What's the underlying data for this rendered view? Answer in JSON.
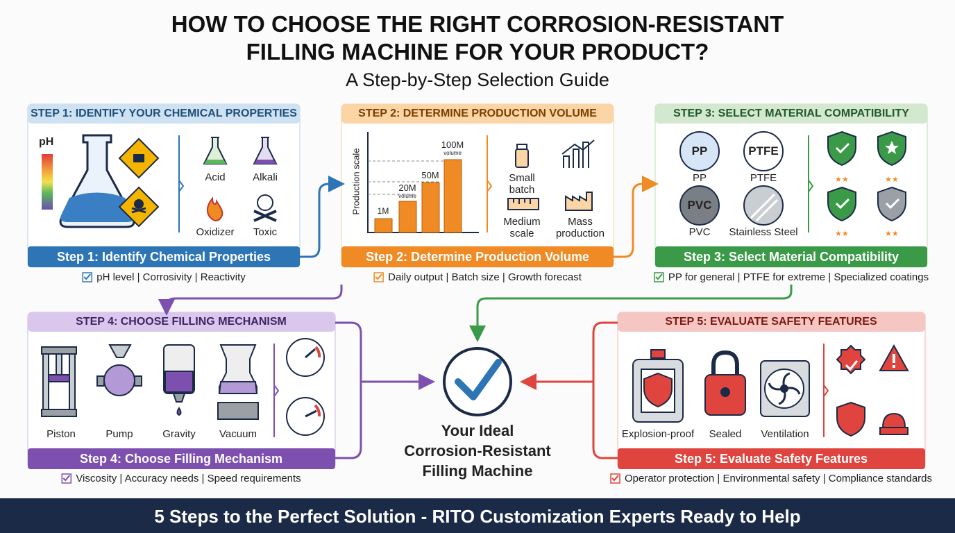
{
  "header": {
    "title_line1": "HOW TO CHOOSE THE RIGHT CORROSION-RESISTANT",
    "title_line2": "FILLING MACHINE FOR YOUR PRODUCT?",
    "subtitle": "A Step-by-Step Selection Guide"
  },
  "steps": [
    {
      "header": "STEP 1: IDENTIFY YOUR CHEMICAL PROPERTIES",
      "labels": [
        "pH",
        "Acid",
        "Alkali",
        "Oxidizer",
        "Toxic"
      ],
      "banner": "Step 1: Identify Chemical Properties",
      "criteria": "pH level | Corrosivity | Reactivity"
    },
    {
      "header": "STEP 2: DETERMINE PRODUCTION VOLUME",
      "chart": {
        "axis_label": "Production scale",
        "bars": [
          "1M",
          "20M",
          "50M",
          "100M"
        ],
        "sublabel": "volume"
      },
      "labels": [
        "Small batch",
        "Medium scale",
        "Mass production"
      ],
      "banner": "Step 2: Determine Production Volume",
      "criteria": "Daily output | Batch size | Growth forecast"
    },
    {
      "header": "STEP 3: SELECT MATERIAL COMPATIBILITY",
      "labels": [
        "PP",
        "PTFE",
        "PVC",
        "Stainless Steel"
      ],
      "banner": "Step 3: Select Material Compatibility",
      "criteria": "PP for general | PTFE for extreme | Specialized coatings"
    },
    {
      "header": "STEP 4: CHOOSE FILLING MECHANISM",
      "labels": [
        "Piston",
        "Pump",
        "Gravity",
        "Vacuum"
      ],
      "banner": "Step 4: Choose Filling Mechanism",
      "criteria": "Viscosity | Accuracy needs | Speed requirements"
    },
    {
      "header": "STEP 5: EVALUATE SAFETY FEATURES",
      "labels": [
        "Explosion-proof",
        "Sealed",
        "Ventilation"
      ],
      "banner": "Step 5: Evaluate Safety Features",
      "criteria": "Operator protection | Environmental safety | Compliance standards"
    }
  ],
  "center": {
    "lines": [
      "Your Ideal",
      "Corrosion-Resistant",
      "Filling Machine"
    ]
  },
  "footer": "5 Steps to the Perfect Solution - RITO Customization Experts Ready to Help"
}
